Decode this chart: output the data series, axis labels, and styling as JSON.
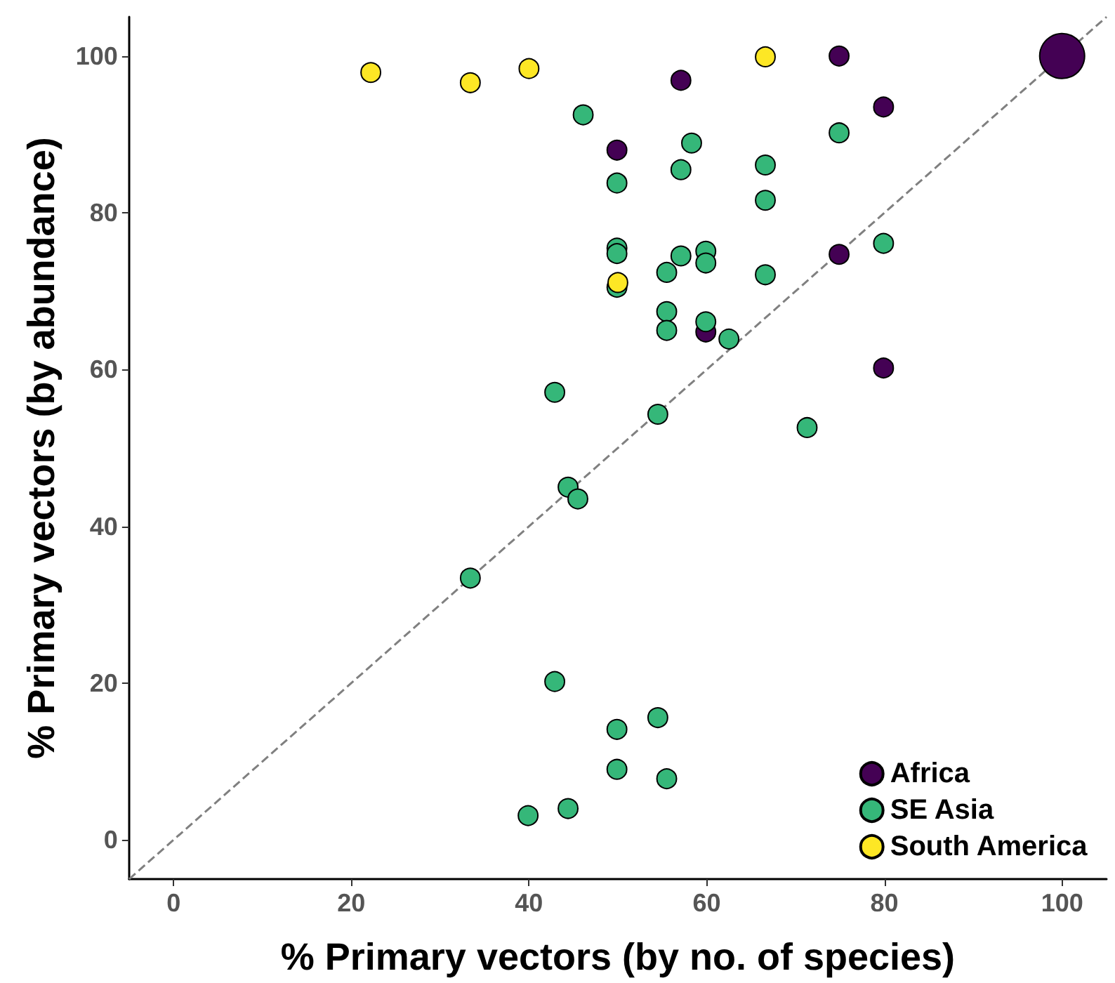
{
  "chart_data": {
    "type": "bubble",
    "xlabel": "% Primary vectors (by no. of species)",
    "ylabel": "% Primary vectors (by abundance)",
    "xlim": [
      -5,
      105
    ],
    "ylim": [
      -5,
      105
    ],
    "xticks": [
      0,
      20,
      40,
      60,
      80,
      100
    ],
    "yticks": [
      0,
      20,
      40,
      60,
      80,
      100
    ],
    "grid": false,
    "legend": "bottom right",
    "marker": "circle",
    "series": [
      {
        "type": "line",
        "color": "#808080",
        "line_style": "dashed",
        "marker": "none",
        "x": [
          -5,
          105
        ],
        "values": [
          -5,
          105
        ]
      },
      {
        "name": "Africa",
        "color": "#440154",
        "x": [
          57.1,
          74.9,
          79.9,
          49.9,
          74.9,
          59.9,
          79.9,
          100
        ],
        "values": [
          96.9,
          100,
          93.5,
          88.0,
          74.7,
          64.8,
          60.2,
          100
        ],
        "sizes": [
          0.19,
          0.19,
          0.19,
          0.19,
          0.19,
          0.19,
          0.19,
          1
        ]
      },
      {
        "name": "SE Asia",
        "color": "#35b779",
        "x": [
          46.1,
          58.3,
          57.1,
          66.6,
          49.9,
          66.6,
          74.9,
          79.9,
          49.9,
          49.9,
          57.1,
          59.9,
          59.9,
          55.5,
          66.6,
          49.9,
          55.5,
          55.5,
          59.9,
          62.5,
          42.9,
          54.5,
          71.3,
          44.4,
          45.5,
          33.4,
          42.9,
          54.5,
          49.9,
          49.9,
          55.5,
          44.4,
          39.9
        ],
        "values": [
          92.5,
          88.9,
          85.5,
          86.1,
          83.8,
          81.6,
          90.2,
          76.1,
          75.5,
          74.8,
          74.5,
          75.1,
          73.6,
          72.4,
          72.1,
          70.5,
          67.4,
          65.0,
          66.1,
          63.9,
          57.1,
          54.3,
          52.6,
          45.0,
          43.5,
          33.4,
          20.2,
          15.6,
          14.1,
          9.0,
          7.8,
          4.0,
          3.1
        ],
        "sizes": [
          0.19,
          0.19,
          0.19,
          0.19,
          0.19,
          0.19,
          0.19,
          0.19,
          0.19,
          0.19,
          0.19,
          0.19,
          0.19,
          0.19,
          0.19,
          0.19,
          0.19,
          0.19,
          0.19,
          0.19,
          0.19,
          0.19,
          0.19,
          0.19,
          0.19,
          0.19,
          0.19,
          0.19,
          0.19,
          0.19,
          0.19,
          0.19,
          0.19
        ]
      },
      {
        "name": "South America",
        "color": "#fde725",
        "x": [
          22.2,
          33.4,
          40.0,
          66.6,
          50.0
        ],
        "values": [
          97.9,
          96.6,
          98.4,
          99.9,
          71.1
        ],
        "sizes": [
          0.19,
          0.19,
          0.19,
          0.19,
          0.19
        ]
      }
    ]
  }
}
